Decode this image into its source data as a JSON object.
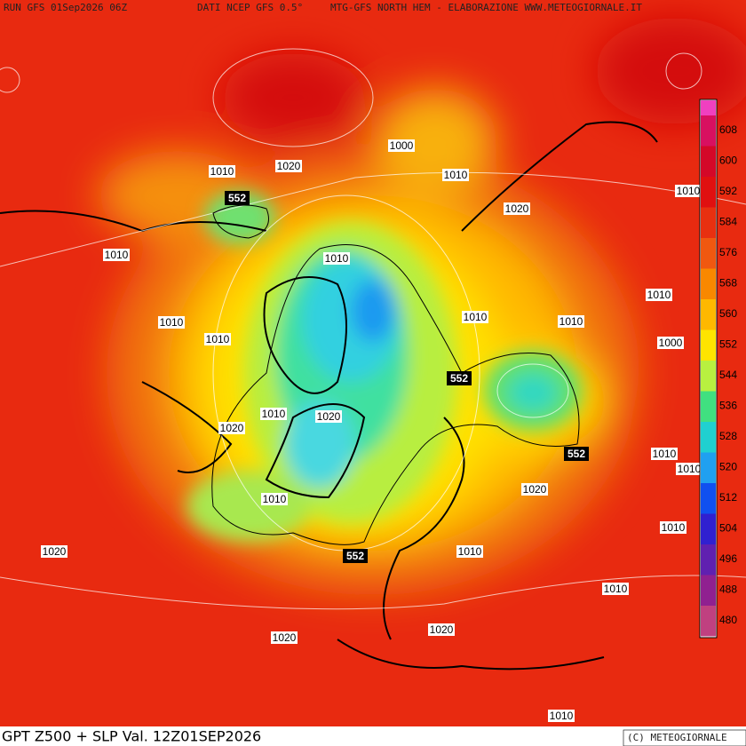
{
  "header": {
    "run": "RUN GFS 01Sep2026 06Z",
    "source": "DATI NCEP GFS 0.5°",
    "product": "MTG-GFS NORTH HEM - ELABORAZIONE WWW.METEOGIORNALE.IT"
  },
  "footer": {
    "title": "GPT Z500 + SLP Val. 12Z01SEP2026",
    "copyright": "(C) METEOGIORNALE"
  },
  "colorbar": {
    "labels": [
      608,
      600,
      592,
      584,
      576,
      568,
      560,
      552,
      544,
      536,
      528,
      520,
      512,
      504,
      496,
      488,
      480
    ]
  },
  "slp_labels": [
    "1000",
    "1010",
    "1020",
    "1010",
    "1020",
    "1010",
    "1010",
    "1010",
    "1010",
    "1010",
    "1010",
    "1010",
    "1010",
    "1000",
    "1010",
    "1020",
    "1020",
    "1010",
    "1010",
    "1020",
    "1010",
    "1010",
    "1020",
    "1010",
    "1010",
    "1020",
    "1020",
    "1010"
  ],
  "z500_labels": [
    "552",
    "552",
    "552",
    "552"
  ]
}
